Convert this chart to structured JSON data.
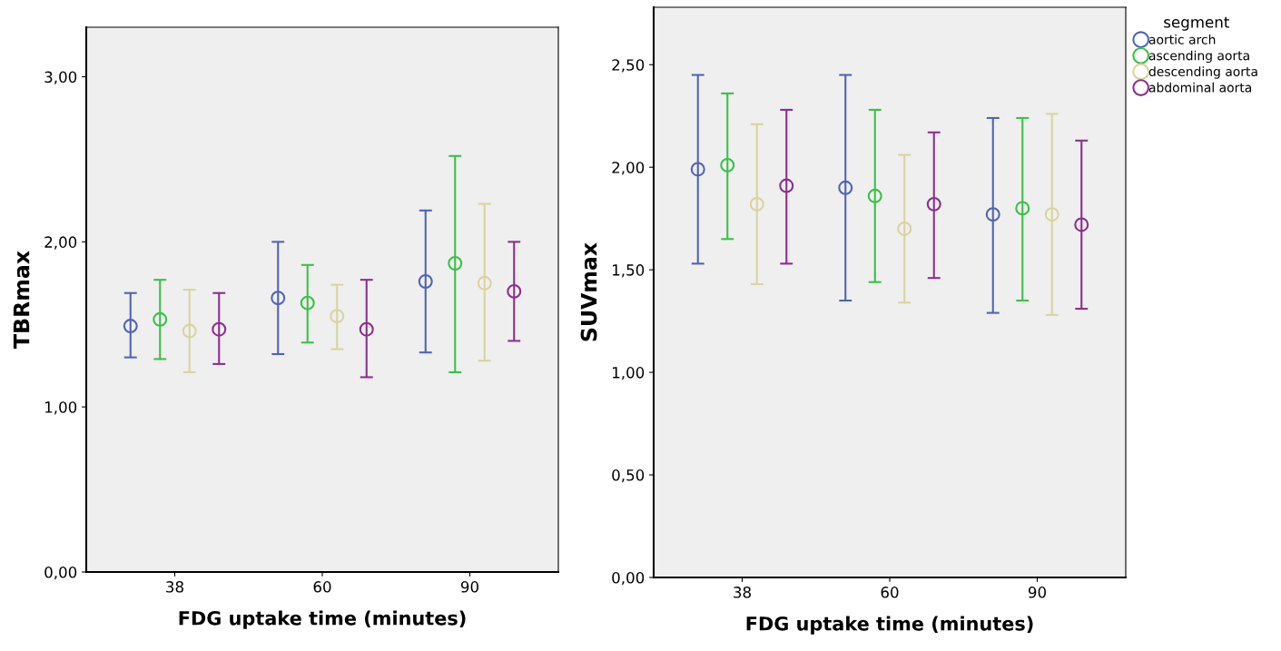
{
  "chart_data": [
    {
      "type": "scatter",
      "xlabel": "FDG uptake time (minutes)",
      "ylabel": "TBRmax",
      "categories": [
        "38",
        "60",
        "90"
      ],
      "ylim": [
        0,
        3.3
      ],
      "yticks": [
        {
          "value": 0,
          "label": "0,00"
        },
        {
          "value": 1,
          "label": "1,00"
        },
        {
          "value": 2,
          "label": "2,00"
        },
        {
          "value": 3,
          "label": "3,00"
        }
      ],
      "marker": "circle",
      "grid": false,
      "legend": false,
      "series": [
        {
          "color": "#4f63b8",
          "values": [
            1.49,
            1.66,
            1.76
          ],
          "errors": [
            [
              1.3,
              1.69
            ],
            [
              1.32,
              2.0
            ],
            [
              1.33,
              2.19
            ]
          ]
        },
        {
          "color": "#3cbf4a",
          "values": [
            1.53,
            1.63,
            1.87
          ],
          "errors": [
            [
              1.29,
              1.77
            ],
            [
              1.39,
              1.86
            ],
            [
              1.21,
              2.52
            ]
          ]
        },
        {
          "color": "#d9d3a0",
          "values": [
            1.46,
            1.55,
            1.75
          ],
          "errors": [
            [
              1.21,
              1.71
            ],
            [
              1.35,
              1.74
            ],
            [
              1.28,
              2.23
            ]
          ]
        },
        {
          "color": "#8b2f8b",
          "values": [
            1.47,
            1.47,
            1.7
          ],
          "errors": [
            [
              1.26,
              1.69
            ],
            [
              1.18,
              1.77
            ],
            [
              1.4,
              2.0
            ]
          ]
        }
      ]
    },
    {
      "type": "scatter",
      "xlabel": "FDG uptake time (minutes)",
      "ylabel": "SUVmax",
      "legend_title": "segment",
      "categories": [
        "38",
        "60",
        "90"
      ],
      "ylim": [
        0,
        2.78
      ],
      "yticks": [
        {
          "value": 0,
          "label": "0,00"
        },
        {
          "value": 0.5,
          "label": "0,50"
        },
        {
          "value": 1,
          "label": "1,00"
        },
        {
          "value": 1.5,
          "label": "1,50"
        },
        {
          "value": 2,
          "label": "2,00"
        },
        {
          "value": 2.5,
          "label": "2,50"
        }
      ],
      "marker": "circle",
      "grid": false,
      "legend": "right",
      "series": [
        {
          "name": "aortic arch",
          "color": "#4f63b8",
          "values": [
            1.99,
            1.9,
            1.77
          ],
          "errors": [
            [
              1.53,
              2.45
            ],
            [
              1.35,
              2.45
            ],
            [
              1.29,
              2.24
            ]
          ]
        },
        {
          "name": "ascending aorta",
          "color": "#3cbf4a",
          "values": [
            2.01,
            1.86,
            1.8
          ],
          "errors": [
            [
              1.65,
              2.36
            ],
            [
              1.44,
              2.28
            ],
            [
              1.35,
              2.24
            ]
          ]
        },
        {
          "name": "descending aorta",
          "color": "#d9d3a0",
          "values": [
            1.82,
            1.7,
            1.77
          ],
          "errors": [
            [
              1.43,
              2.21
            ],
            [
              1.34,
              2.06
            ],
            [
              1.28,
              2.26
            ]
          ]
        },
        {
          "name": "abdominal aorta",
          "color": "#8b2f8b",
          "values": [
            1.91,
            1.82,
            1.72
          ],
          "errors": [
            [
              1.53,
              2.28
            ],
            [
              1.46,
              2.17
            ],
            [
              1.31,
              2.13
            ]
          ]
        }
      ]
    }
  ]
}
